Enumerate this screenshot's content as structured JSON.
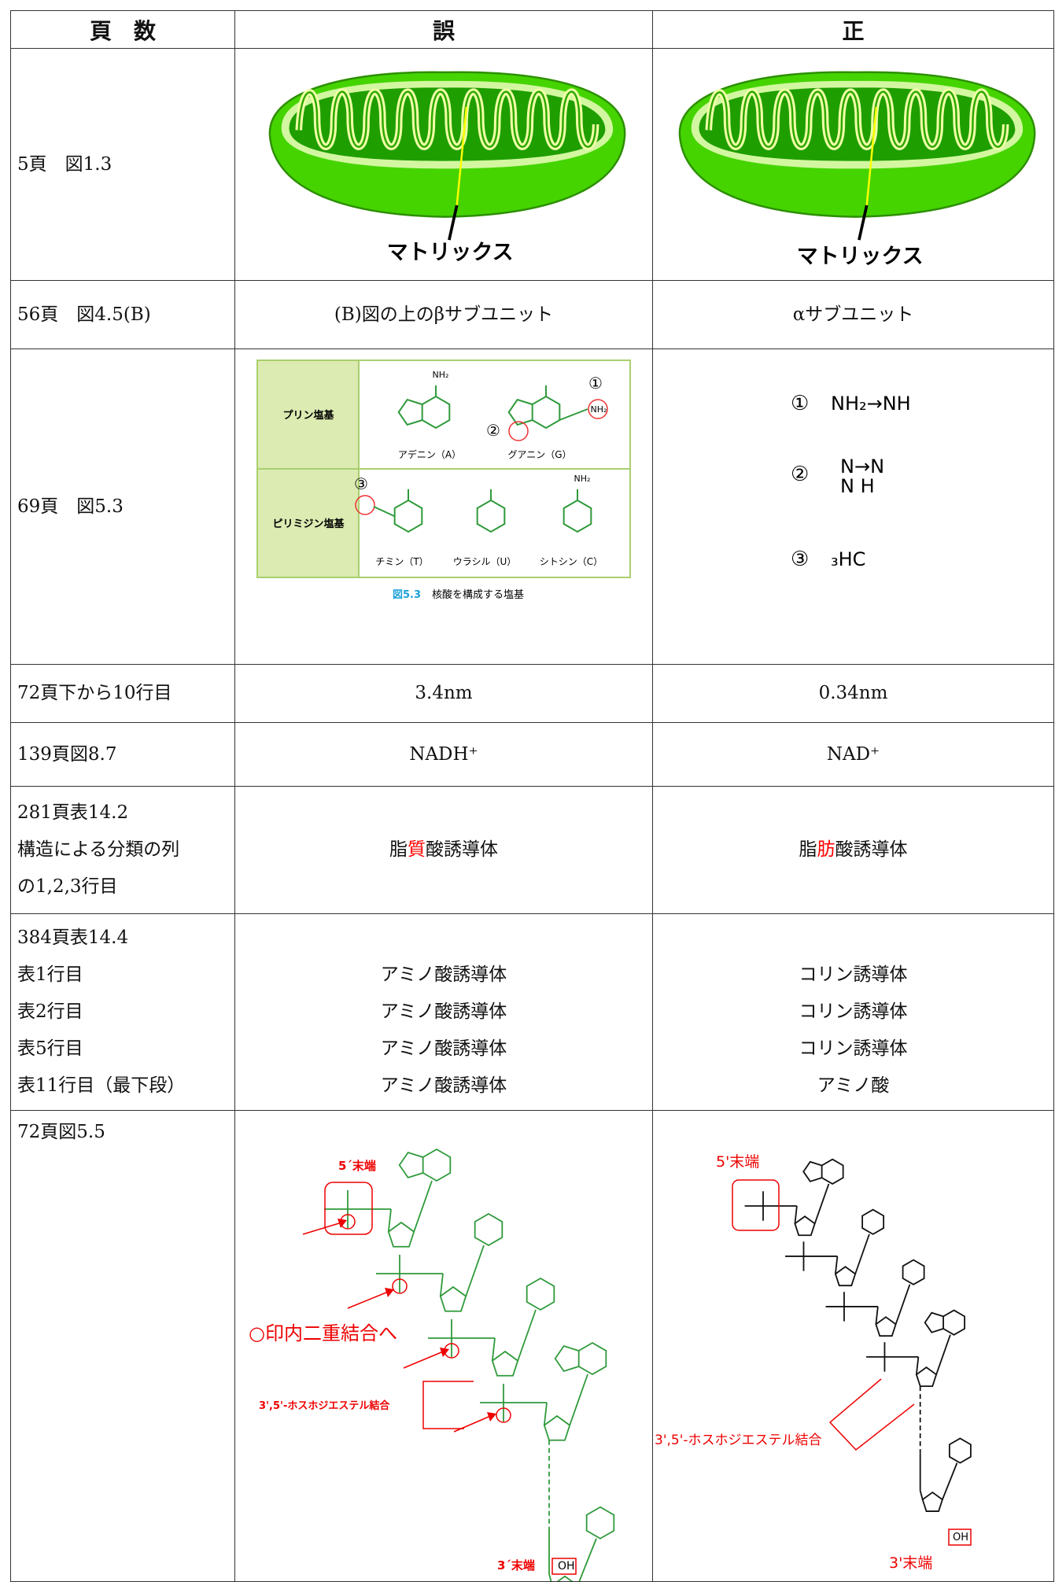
{
  "table": {
    "header": [
      "頁　数",
      "誤",
      "正"
    ],
    "rows": [
      {
        "page": [
          "5頁　図1.3"
        ],
        "wrong": {
          "figure_label": "マトリックス"
        },
        "right": {
          "figure_label": "マトリックス"
        }
      },
      {
        "page": [
          "56頁　図4.5(B)"
        ],
        "wrong": "(B)図の上のβサブユニット",
        "right": "αサブユニット"
      },
      {
        "page": [
          "69頁　図5.3"
        ],
        "wrong": {
          "groups": [
            "プリン塩基",
            "ピリミジン塩基"
          ],
          "bases": [
            "アデニン（A）",
            "グアニン（G）",
            "チミン（T）",
            "ウラシル（U）",
            "シトシン（C）"
          ],
          "markers": [
            "①",
            "②",
            "③"
          ],
          "amino": "NH₂",
          "caption_number": "図5.3",
          "caption": "核酸を構成する塩基"
        },
        "right": {
          "lines": [
            {
              "marker": "①",
              "text": "NH₂→NH"
            },
            {
              "marker": "②",
              "top": "N→N",
              "bottom": "N H"
            },
            {
              "marker": "③",
              "text": "₃HC"
            }
          ]
        }
      },
      {
        "page": [
          "72頁下から10行目"
        ],
        "wrong": "3.4nm",
        "right": "0.34nm"
      },
      {
        "page": [
          "139頁図8.7"
        ],
        "wrong": "NADH⁺",
        "right": "NAD⁺"
      },
      {
        "page": [
          "281頁表14.2",
          "構造による分類の列",
          "の1,2,3行目"
        ],
        "wrong": [
          {
            "text": "脂"
          },
          {
            "text": "質",
            "color": "#ff0000"
          },
          {
            "text": "酸誘導体"
          }
        ],
        "right": [
          {
            "text": "脂"
          },
          {
            "text": "肪",
            "color": "#ff0000"
          },
          {
            "text": "酸誘導体"
          }
        ]
      },
      {
        "page": [
          "384頁表14.4",
          "表1行目",
          "表2行目",
          "表5行目",
          "表11行目（最下段）"
        ],
        "wrong": [
          "アミノ酸誘導体",
          "アミノ酸誘導体",
          "アミノ酸誘導体",
          "アミノ酸誘導体"
        ],
        "right": [
          "コリン誘導体",
          "コリン誘導体",
          "コリン誘導体",
          "アミノ酸"
        ]
      },
      {
        "page": [
          "72頁図5.5"
        ],
        "wrong": {
          "five_end": "5´末端",
          "note": "○印内二重結合へ",
          "bond": "3',5'-ホスホジエステル結合",
          "three_end": "3´末端",
          "oh": "OH"
        },
        "right": {
          "five_end": "5'末端",
          "bond": "3',5'-ホスホジエステル結合",
          "three_end": "3'末端",
          "oh": "OH"
        }
      }
    ]
  }
}
